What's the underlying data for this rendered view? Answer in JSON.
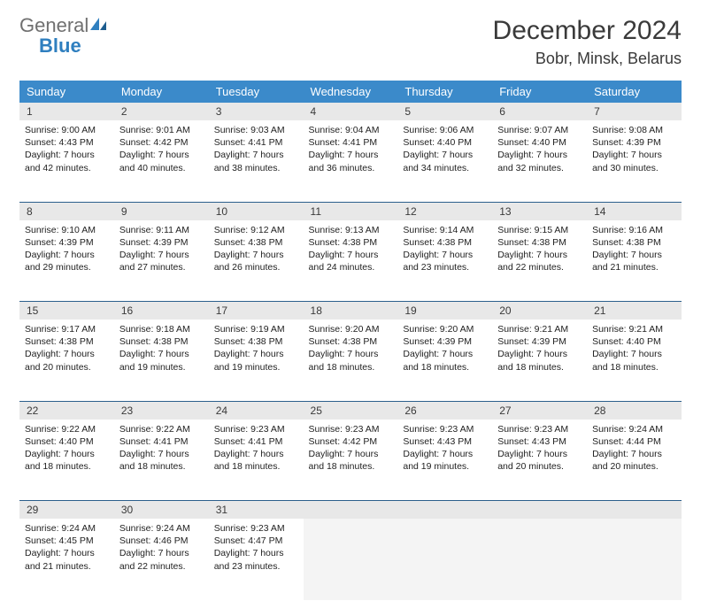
{
  "logo": {
    "general": "General",
    "blue": "Blue"
  },
  "title": "December 2024",
  "location": "Bobr, Minsk, Belarus",
  "colors": {
    "header_bg": "#3b8aca",
    "header_text": "#ffffff",
    "daynum_bg": "#e8e8e8",
    "divider": "#2c5f8c",
    "page_bg": "#ffffff",
    "body_text": "#222222",
    "title_text": "#3a3a3a"
  },
  "weekdays": [
    "Sunday",
    "Monday",
    "Tuesday",
    "Wednesday",
    "Thursday",
    "Friday",
    "Saturday"
  ],
  "weeks": [
    [
      {
        "n": "1",
        "sr": "Sunrise: 9:00 AM",
        "ss": "Sunset: 4:43 PM",
        "dl": "Daylight: 7 hours and 42 minutes."
      },
      {
        "n": "2",
        "sr": "Sunrise: 9:01 AM",
        "ss": "Sunset: 4:42 PM",
        "dl": "Daylight: 7 hours and 40 minutes."
      },
      {
        "n": "3",
        "sr": "Sunrise: 9:03 AM",
        "ss": "Sunset: 4:41 PM",
        "dl": "Daylight: 7 hours and 38 minutes."
      },
      {
        "n": "4",
        "sr": "Sunrise: 9:04 AM",
        "ss": "Sunset: 4:41 PM",
        "dl": "Daylight: 7 hours and 36 minutes."
      },
      {
        "n": "5",
        "sr": "Sunrise: 9:06 AM",
        "ss": "Sunset: 4:40 PM",
        "dl": "Daylight: 7 hours and 34 minutes."
      },
      {
        "n": "6",
        "sr": "Sunrise: 9:07 AM",
        "ss": "Sunset: 4:40 PM",
        "dl": "Daylight: 7 hours and 32 minutes."
      },
      {
        "n": "7",
        "sr": "Sunrise: 9:08 AM",
        "ss": "Sunset: 4:39 PM",
        "dl": "Daylight: 7 hours and 30 minutes."
      }
    ],
    [
      {
        "n": "8",
        "sr": "Sunrise: 9:10 AM",
        "ss": "Sunset: 4:39 PM",
        "dl": "Daylight: 7 hours and 29 minutes."
      },
      {
        "n": "9",
        "sr": "Sunrise: 9:11 AM",
        "ss": "Sunset: 4:39 PM",
        "dl": "Daylight: 7 hours and 27 minutes."
      },
      {
        "n": "10",
        "sr": "Sunrise: 9:12 AM",
        "ss": "Sunset: 4:38 PM",
        "dl": "Daylight: 7 hours and 26 minutes."
      },
      {
        "n": "11",
        "sr": "Sunrise: 9:13 AM",
        "ss": "Sunset: 4:38 PM",
        "dl": "Daylight: 7 hours and 24 minutes."
      },
      {
        "n": "12",
        "sr": "Sunrise: 9:14 AM",
        "ss": "Sunset: 4:38 PM",
        "dl": "Daylight: 7 hours and 23 minutes."
      },
      {
        "n": "13",
        "sr": "Sunrise: 9:15 AM",
        "ss": "Sunset: 4:38 PM",
        "dl": "Daylight: 7 hours and 22 minutes."
      },
      {
        "n": "14",
        "sr": "Sunrise: 9:16 AM",
        "ss": "Sunset: 4:38 PM",
        "dl": "Daylight: 7 hours and 21 minutes."
      }
    ],
    [
      {
        "n": "15",
        "sr": "Sunrise: 9:17 AM",
        "ss": "Sunset: 4:38 PM",
        "dl": "Daylight: 7 hours and 20 minutes."
      },
      {
        "n": "16",
        "sr": "Sunrise: 9:18 AM",
        "ss": "Sunset: 4:38 PM",
        "dl": "Daylight: 7 hours and 19 minutes."
      },
      {
        "n": "17",
        "sr": "Sunrise: 9:19 AM",
        "ss": "Sunset: 4:38 PM",
        "dl": "Daylight: 7 hours and 19 minutes."
      },
      {
        "n": "18",
        "sr": "Sunrise: 9:20 AM",
        "ss": "Sunset: 4:38 PM",
        "dl": "Daylight: 7 hours and 18 minutes."
      },
      {
        "n": "19",
        "sr": "Sunrise: 9:20 AM",
        "ss": "Sunset: 4:39 PM",
        "dl": "Daylight: 7 hours and 18 minutes."
      },
      {
        "n": "20",
        "sr": "Sunrise: 9:21 AM",
        "ss": "Sunset: 4:39 PM",
        "dl": "Daylight: 7 hours and 18 minutes."
      },
      {
        "n": "21",
        "sr": "Sunrise: 9:21 AM",
        "ss": "Sunset: 4:40 PM",
        "dl": "Daylight: 7 hours and 18 minutes."
      }
    ],
    [
      {
        "n": "22",
        "sr": "Sunrise: 9:22 AM",
        "ss": "Sunset: 4:40 PM",
        "dl": "Daylight: 7 hours and 18 minutes."
      },
      {
        "n": "23",
        "sr": "Sunrise: 9:22 AM",
        "ss": "Sunset: 4:41 PM",
        "dl": "Daylight: 7 hours and 18 minutes."
      },
      {
        "n": "24",
        "sr": "Sunrise: 9:23 AM",
        "ss": "Sunset: 4:41 PM",
        "dl": "Daylight: 7 hours and 18 minutes."
      },
      {
        "n": "25",
        "sr": "Sunrise: 9:23 AM",
        "ss": "Sunset: 4:42 PM",
        "dl": "Daylight: 7 hours and 18 minutes."
      },
      {
        "n": "26",
        "sr": "Sunrise: 9:23 AM",
        "ss": "Sunset: 4:43 PM",
        "dl": "Daylight: 7 hours and 19 minutes."
      },
      {
        "n": "27",
        "sr": "Sunrise: 9:23 AM",
        "ss": "Sunset: 4:43 PM",
        "dl": "Daylight: 7 hours and 20 minutes."
      },
      {
        "n": "28",
        "sr": "Sunrise: 9:24 AM",
        "ss": "Sunset: 4:44 PM",
        "dl": "Daylight: 7 hours and 20 minutes."
      }
    ],
    [
      {
        "n": "29",
        "sr": "Sunrise: 9:24 AM",
        "ss": "Sunset: 4:45 PM",
        "dl": "Daylight: 7 hours and 21 minutes."
      },
      {
        "n": "30",
        "sr": "Sunrise: 9:24 AM",
        "ss": "Sunset: 4:46 PM",
        "dl": "Daylight: 7 hours and 22 minutes."
      },
      {
        "n": "31",
        "sr": "Sunrise: 9:23 AM",
        "ss": "Sunset: 4:47 PM",
        "dl": "Daylight: 7 hours and 23 minutes."
      },
      null,
      null,
      null,
      null
    ]
  ]
}
